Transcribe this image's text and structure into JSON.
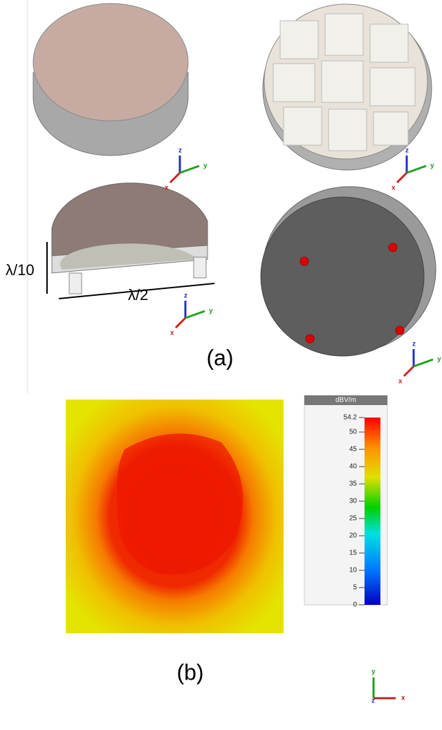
{
  "panel_a": {
    "label": "(a)",
    "height_label": "λ/10",
    "width_label": "λ/2",
    "triads": [
      {
        "x": "x",
        "y": "y",
        "z": "z"
      },
      {
        "x": "x",
        "y": "y",
        "z": "z"
      },
      {
        "x": "x",
        "y": "y",
        "z": "z"
      },
      {
        "x": "x",
        "y": "y",
        "z": "z"
      }
    ]
  },
  "panel_b": {
    "label": "(b)",
    "colorbar": {
      "unit": "dBV/m",
      "range": [
        0,
        54.2
      ],
      "ticks": [
        0,
        5,
        10,
        15,
        20,
        25,
        30,
        35,
        40,
        45,
        50,
        54.2
      ]
    },
    "triad": {
      "x": "x",
      "y": "y",
      "z": "z"
    }
  }
}
